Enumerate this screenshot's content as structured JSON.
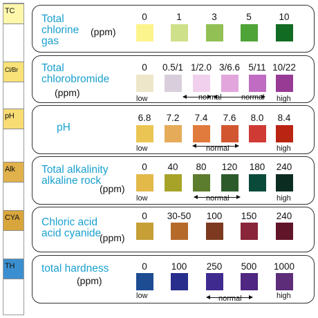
{
  "strip": {
    "pads": [
      {
        "label": "TC",
        "color": "#fef7ab"
      },
      {
        "label": "Cl/Br",
        "color": "#f9e278"
      },
      {
        "label": "pH",
        "color": "#f8dc74"
      },
      {
        "label": "Alk",
        "color": "#e1b14c"
      },
      {
        "label": "CYA",
        "color": "#d9a63d"
      },
      {
        "label": "TH",
        "color": "#3b8fd0"
      }
    ]
  },
  "panels": [
    {
      "title": "Total\nchlorine\ngas",
      "unit": "(ppm)",
      "values": [
        "0",
        "1",
        "3",
        "5",
        "10"
      ],
      "colors": [
        "#fbf48d",
        "#cfe08a",
        "#93c054",
        "#4fa437",
        "#126b23"
      ],
      "low": "",
      "high": "",
      "normal_labels": []
    },
    {
      "title": "Total\nchlorobromide",
      "unit": "(ppm)",
      "values": [
        "0",
        "0.5/1",
        "1/2.0",
        "3/6.6",
        "5/11",
        "10/22"
      ],
      "colors": [
        "#ede6c9",
        "#d9cfdc",
        "#f0d0ec",
        "#e2a6dc",
        "#bf6cc2",
        "#983b95"
      ],
      "low": "low",
      "high": "high",
      "normal_labels": [
        "normal",
        "normal"
      ]
    },
    {
      "title": "pH",
      "unit": "",
      "values": [
        "6.8",
        "7.2",
        "7.4",
        "7.6",
        "8.0",
        "8.4"
      ],
      "colors": [
        "#ebc553",
        "#e6ab59",
        "#e17a3d",
        "#d25730",
        "#cf3b34",
        "#ba2413"
      ],
      "low": "low",
      "high": "high",
      "normal_labels": [
        "normal"
      ]
    },
    {
      "title": "Total alkalinity\nalkaline rock",
      "unit": "(ppm)",
      "values": [
        "0",
        "40",
        "80",
        "120",
        "180",
        "240"
      ],
      "colors": [
        "#e3b94a",
        "#a7a329",
        "#5c7c2e",
        "#2d5a2b",
        "#0a4a3a",
        "#0b2c21"
      ],
      "low": "low",
      "high": "high",
      "normal_labels": [
        "normal"
      ]
    },
    {
      "title": "Chloric acid\nacid cyanide",
      "unit": "(ppm)",
      "values": [
        "0",
        "30-50",
        "100",
        "150",
        "240"
      ],
      "colors": [
        "#c6a037",
        "#b56a2a",
        "#7d3a20",
        "#8a2639",
        "#601529"
      ],
      "low": "",
      "high": "",
      "normal_labels": []
    },
    {
      "title": "total hardness",
      "unit": "(ppm)",
      "values": [
        "0",
        "100",
        "250",
        "500",
        "1000"
      ],
      "colors": [
        "#1d4c92",
        "#272e8c",
        "#3f2b90",
        "#4f2681",
        "#5d2d79"
      ],
      "low": "low",
      "high": "high",
      "normal_labels": [
        "normal"
      ]
    }
  ]
}
